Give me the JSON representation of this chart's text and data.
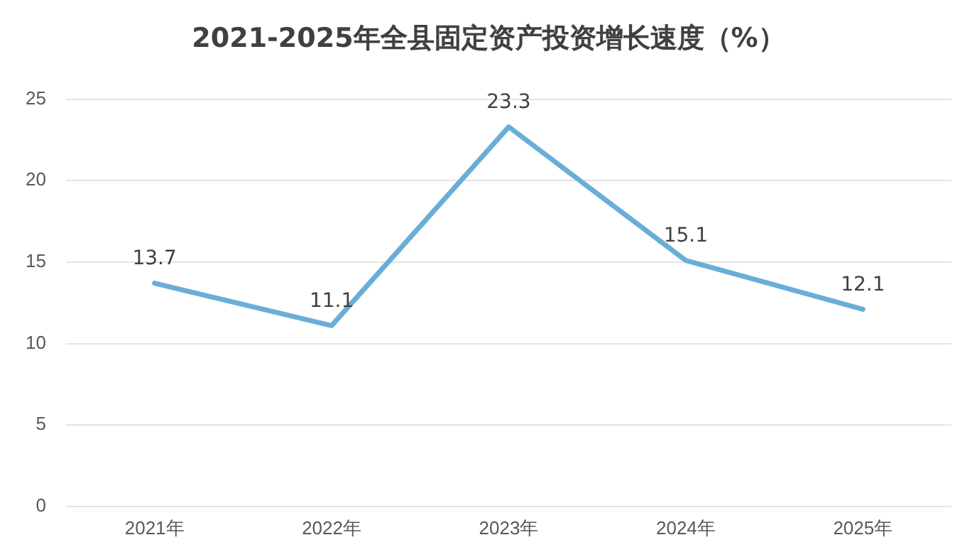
{
  "chart_data": {
    "type": "line",
    "title": "2021-2025年全县固定资产投资增长速度（%）",
    "categories": [
      "2021年",
      "2022年",
      "2023年",
      "2024年",
      "2025年"
    ],
    "series": [
      {
        "color": "#6aaed8",
        "values": [
          13.7,
          11.1,
          23.3,
          15.1,
          12.1
        ]
      }
    ],
    "ylim": [
      0,
      25
    ],
    "yticks": [
      0,
      5,
      10,
      15,
      20,
      25
    ],
    "grid": "y",
    "legend": false,
    "marker": "none",
    "line_style": "solid",
    "data_labels": true
  }
}
